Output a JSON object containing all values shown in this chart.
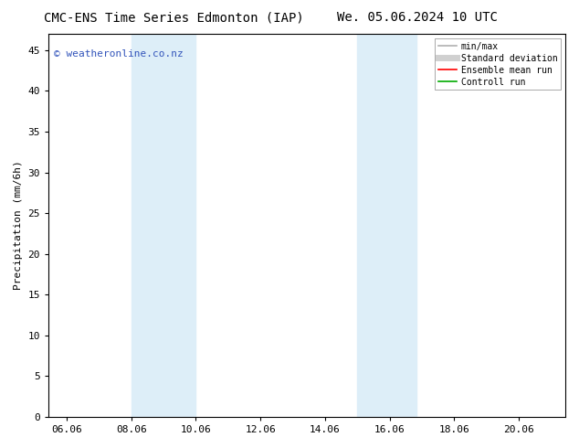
{
  "title_left": "CMC-ENS Time Series Edmonton (IAP)",
  "title_right": "We. 05.06.2024 10 UTC",
  "ylabel": "Precipitation (mm/6h)",
  "watermark": "© weatheronline.co.nz",
  "xlim": [
    5.5,
    21.5
  ],
  "ylim": [
    0,
    47
  ],
  "yticks": [
    0,
    5,
    10,
    15,
    20,
    25,
    30,
    35,
    40,
    45
  ],
  "xticks": [
    6.06,
    8.06,
    10.06,
    12.06,
    14.06,
    16.06,
    18.06,
    20.06
  ],
  "xtick_labels": [
    "06.06",
    "08.06",
    "10.06",
    "12.06",
    "14.06",
    "16.06",
    "18.06",
    "20.06"
  ],
  "shaded_regions": [
    {
      "xmin": 8.06,
      "xmax": 10.06
    },
    {
      "xmin": 15.06,
      "xmax": 16.9
    }
  ],
  "shaded_color": "#ddeef8",
  "legend_items": [
    {
      "label": "min/max",
      "color": "#b0b0b0",
      "lw": 1.2
    },
    {
      "label": "Standard deviation",
      "color": "#d0d0d0",
      "lw": 5
    },
    {
      "label": "Ensemble mean run",
      "color": "#ff0000",
      "lw": 1.2
    },
    {
      "label": "Controll run",
      "color": "#00aa00",
      "lw": 1.2
    }
  ],
  "bg_color": "#ffffff",
  "plot_bg_color": "#ffffff",
  "border_color": "#000000",
  "title_fontsize": 10,
  "label_fontsize": 8,
  "tick_fontsize": 8,
  "watermark_color": "#3355bb",
  "watermark_fontsize": 8,
  "legend_fontsize": 7
}
